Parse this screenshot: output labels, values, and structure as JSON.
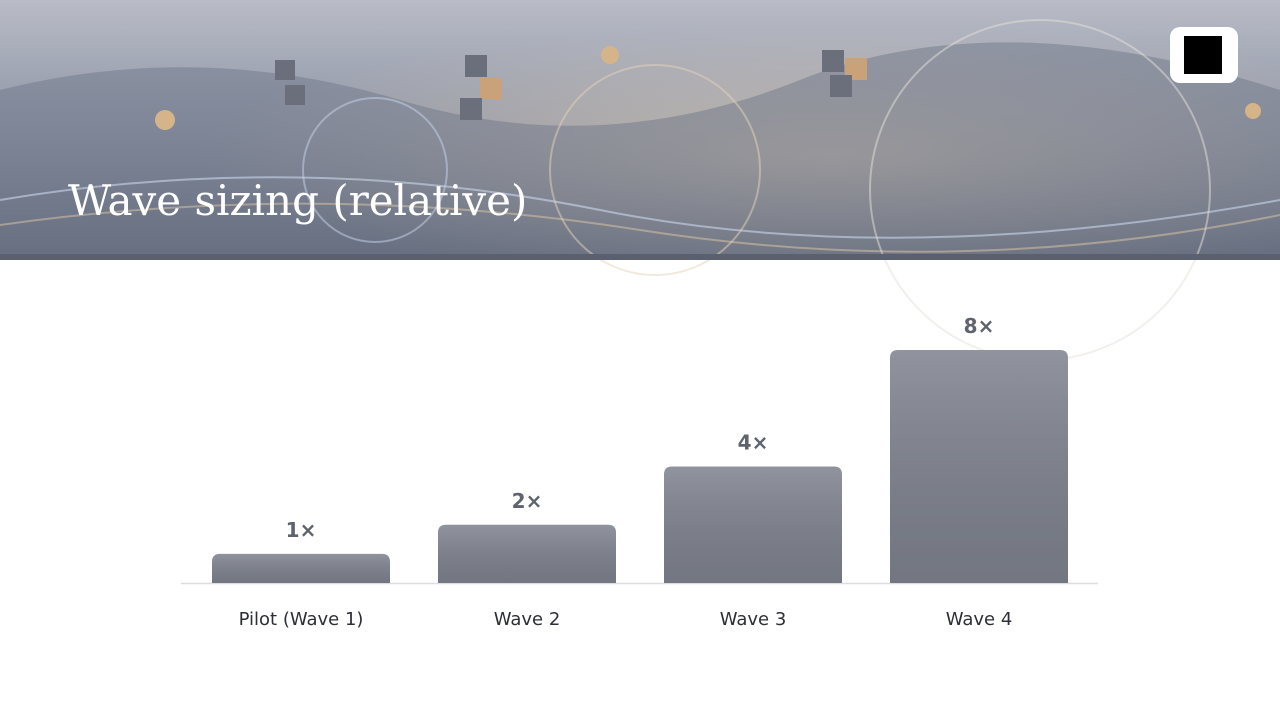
{
  "chart_data": {
    "type": "bar",
    "title": "Wave sizing (relative)",
    "categories": [
      "Pilot (Wave 1)",
      "Wave 2",
      "Wave 3",
      "Wave 4"
    ],
    "values": [
      1,
      2,
      4,
      8
    ],
    "value_labels": [
      "1×",
      "2×",
      "4×",
      "8×"
    ],
    "color": "#7d818d"
  }
}
